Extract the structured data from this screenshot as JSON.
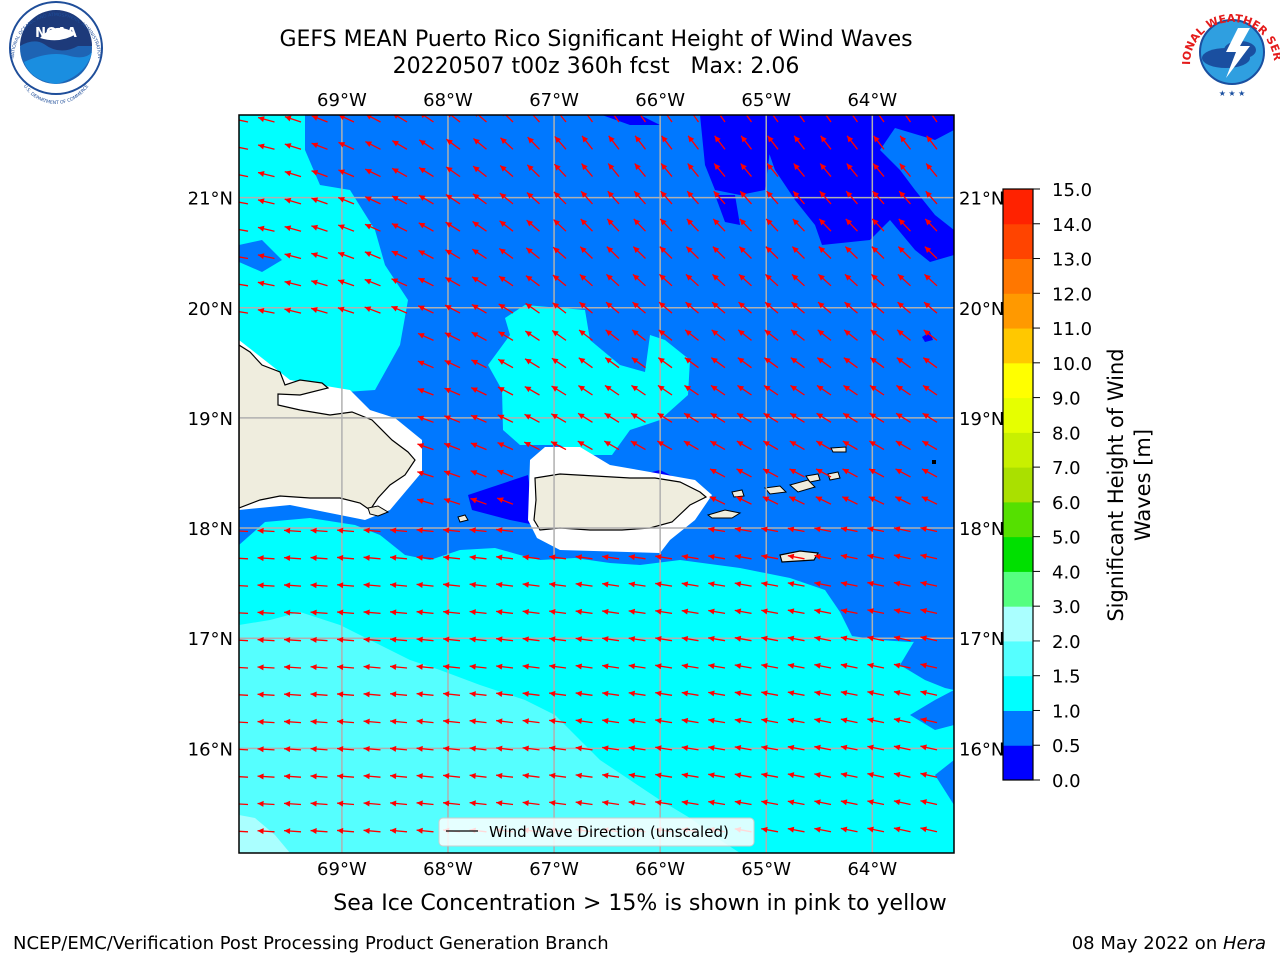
{
  "title": {
    "line1": "GEFS MEAN Puerto Rico Significant Height of Wind Waves",
    "line2": "20220507 t00z 360h fcst   Max: 2.06"
  },
  "map": {
    "lon_range": [
      -69.97,
      -63.23
    ],
    "lat_range": [
      15.05,
      21.75
    ],
    "lon_ticks": [
      -69,
      -68,
      -67,
      -66,
      -65,
      -64
    ],
    "lon_tick_labels": [
      "69°W",
      "68°W",
      "67°W",
      "66°W",
      "65°W",
      "64°W"
    ],
    "lat_ticks": [
      16,
      17,
      18,
      19,
      20,
      21
    ],
    "lat_tick_labels": [
      "16°N",
      "17°N",
      "18°N",
      "19°N",
      "20°N",
      "21°N"
    ],
    "grid": true,
    "arrow_color": "#ff0000",
    "land_color": "#efedde",
    "legend_label": "Wind Wave Direction (unscaled)",
    "legend_placement": "bottom-center"
  },
  "colorbar": {
    "label": "Significant Height of Wind Waves [m]",
    "tick_values": [
      0.0,
      0.5,
      1.0,
      1.5,
      2.0,
      3.0,
      4.0,
      5.0,
      6.0,
      7.0,
      8.0,
      9.0,
      10.0,
      11.0,
      12.0,
      13.0,
      14.0,
      15.0
    ],
    "tick_labels": [
      "0.0",
      "0.5",
      "1.0",
      "1.5",
      "2.0",
      "3.0",
      "4.0",
      "5.0",
      "6.0",
      "7.0",
      "8.0",
      "9.0",
      "10.0",
      "11.0",
      "12.0",
      "13.0",
      "14.0",
      "15.0"
    ],
    "colors": [
      "#0000ff",
      "#0078ff",
      "#00ffff",
      "#55ffff",
      "#aaffff",
      "#55ff80",
      "#00e000",
      "#55e000",
      "#aae000",
      "#c8f000",
      "#e6ff00",
      "#ffff00",
      "#ffc800",
      "#ff9900",
      "#ff7700",
      "#ff4400",
      "#ff2200"
    ]
  },
  "subtitle": "Sea Ice Concentration > 15% is shown in pink to yellow",
  "footer": {
    "left": "NCEP/EMC/Verification Post Processing Product Generation Branch",
    "right_prefix": "08 May 2022 on ",
    "right_italic": "Hera"
  },
  "logos": {
    "noaa_text": "NOAA",
    "noaa_ring_top": "NATIONAL OCEANIC AND ATMOSPHERIC ADMINISTRATION",
    "noaa_ring_bottom": "U.S. DEPARTMENT OF COMMERCE",
    "nws_ring": "NATIONAL WEATHER SERVICE"
  }
}
